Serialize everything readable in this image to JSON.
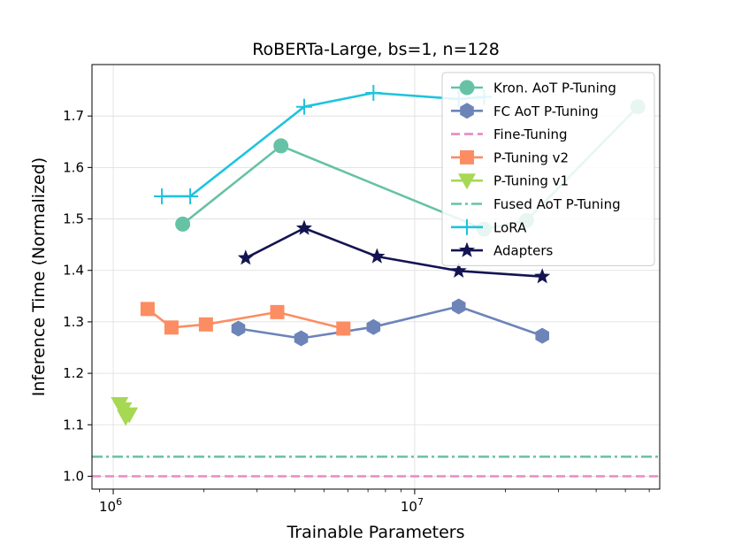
{
  "chart_data": {
    "type": "line",
    "title": "RoBERTa-Large, bs=1, n=128",
    "xlabel": "Trainable Parameters",
    "ylabel": "Inference Time (Normalized)",
    "xscale": "log",
    "xlim": [
      850000,
      65000000
    ],
    "ylim": [
      0.975,
      1.8
    ],
    "xticks": [
      {
        "value": 1000000,
        "base": "10",
        "exp": "6"
      },
      {
        "value": 10000000,
        "base": "10",
        "exp": "7"
      }
    ],
    "yticks": [
      {
        "value": 1.0,
        "label": "1.0"
      },
      {
        "value": 1.1,
        "label": "1.1"
      },
      {
        "value": 1.2,
        "label": "1.2"
      },
      {
        "value": 1.3,
        "label": "1.3"
      },
      {
        "value": 1.4,
        "label": "1.4"
      },
      {
        "value": 1.5,
        "label": "1.5"
      },
      {
        "value": 1.6,
        "label": "1.6"
      },
      {
        "value": 1.7,
        "label": "1.7"
      }
    ],
    "grid": true,
    "legend_position": "top-right",
    "series": [
      {
        "name": "Kron. AoT P-Tuning",
        "color": "#66c2a5",
        "marker": "circle",
        "line": "solid",
        "x": [
          1700000,
          3600000,
          17000000,
          23500000,
          55000000
        ],
        "y": [
          1.49,
          1.642,
          1.48,
          1.497,
          1.718
        ]
      },
      {
        "name": "FC AoT P-Tuning",
        "color": "#6c84b8",
        "marker": "hexagon",
        "line": "solid",
        "x": [
          2600000,
          4200000,
          7300000,
          14000000,
          26500000
        ],
        "y": [
          1.287,
          1.268,
          1.29,
          1.33,
          1.273
        ]
      },
      {
        "name": "Fine-Tuning",
        "color": "#e78ac3",
        "marker": "none",
        "line": "dashed",
        "hline": 1.0
      },
      {
        "name": "P-Tuning v2",
        "color": "#fc8d62",
        "marker": "square",
        "line": "solid",
        "x": [
          1300000,
          1560000,
          2030000,
          3500000,
          5800000
        ],
        "y": [
          1.325,
          1.289,
          1.295,
          1.319,
          1.287
        ]
      },
      {
        "name": "P-Tuning v1",
        "color": "#a6d854",
        "marker": "triangle-down",
        "line": "solid",
        "x": [
          1050000,
          1080000,
          1100000,
          1130000
        ],
        "y": [
          1.14,
          1.13,
          1.115,
          1.12
        ]
      },
      {
        "name": "Fused AoT P-Tuning",
        "color": "#66c2a5",
        "marker": "none",
        "line": "dashdot",
        "hline": 1.038
      },
      {
        "name": "LoRA",
        "color": "#1fc3dd",
        "marker": "plus",
        "line": "solid",
        "x": [
          1450000,
          1800000,
          4300000,
          7300000,
          14000000,
          17000000
        ],
        "y": [
          1.544,
          1.544,
          1.718,
          1.745,
          1.733,
          1.737
        ]
      },
      {
        "name": "Adapters",
        "color": "#141452",
        "marker": "star",
        "line": "solid",
        "x": [
          2750000,
          4300000,
          7500000,
          14000000,
          26500000
        ],
        "y": [
          1.424,
          1.482,
          1.427,
          1.399,
          1.388
        ]
      }
    ]
  }
}
